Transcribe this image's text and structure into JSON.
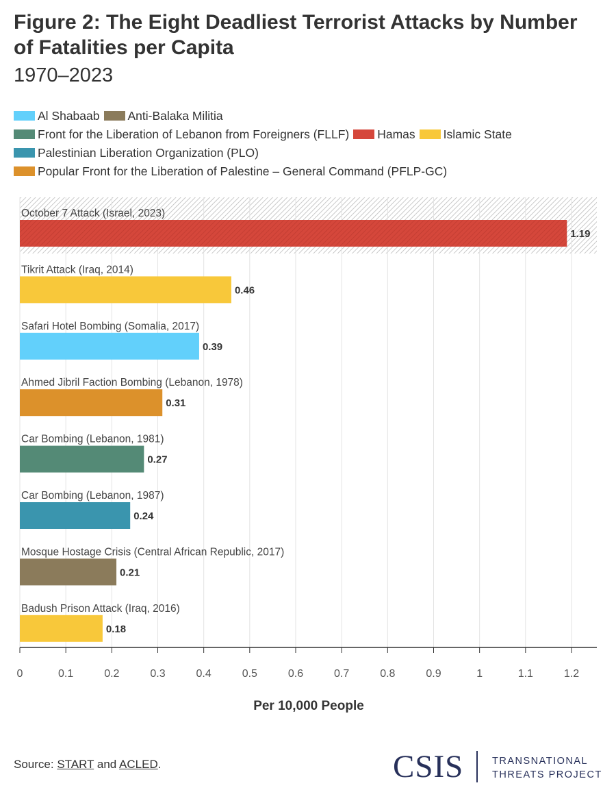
{
  "title": "Figure 2: The Eight Deadliest Terrorist Attacks by Number of Fatalities per Capita",
  "subtitle": "1970–2023",
  "legend": [
    {
      "label": "Al Shabaab",
      "color": "#62d0fb"
    },
    {
      "label": "Anti-Balaka Militia",
      "color": "#8b7b5b"
    },
    {
      "label": "Front for the Liberation of Lebanon from Foreigners (FLLF)",
      "color": "#548a76"
    },
    {
      "label": "Hamas",
      "color": "#d5473b"
    },
    {
      "label": "Islamic State",
      "color": "#f8c83a"
    },
    {
      "label": "Palestinian Liberation Organization (PLO)",
      "color": "#3a95ae"
    },
    {
      "label": "Popular Front for the Liberation of Palestine – General Command (PFLP-GC)",
      "color": "#dc912b"
    }
  ],
  "chart_data": {
    "type": "bar",
    "orientation": "horizontal",
    "categories": [
      "October 7 Attack (Israel, 2023)",
      "Tikrit Attack (Iraq, 2014)",
      "Safari Hotel Bombing (Somalia, 2017)",
      "Ahmed Jibril Faction Bombing (Lebanon, 1978)",
      "Car Bombing (Lebanon, 1981)",
      "Car Bombing (Lebanon, 1987)",
      "Mosque Hostage Crisis (Central African Republic, 2017)",
      "Badush Prison Attack (Iraq, 2016)"
    ],
    "values": [
      1.19,
      0.46,
      0.39,
      0.31,
      0.27,
      0.24,
      0.21,
      0.18
    ],
    "value_labels": [
      "1.19",
      "0.46",
      "0.39",
      "0.31",
      "0.27",
      "0.24",
      "0.21",
      "0.18"
    ],
    "groups": [
      "Hamas",
      "Islamic State",
      "Al Shabaab",
      "Popular Front for the Liberation of Palestine – General Command (PFLP-GC)",
      "Front for the Liberation of Lebanon from Foreigners (FLLF)",
      "Palestinian Liberation Organization (PLO)",
      "Anti-Balaka Militia",
      "Islamic State"
    ],
    "highlighted": "October 7 Attack (Israel, 2023)",
    "xlabel": "Per 10,000 People",
    "xlim": [
      0,
      1.255
    ],
    "xticks": [
      0,
      0.1,
      0.2,
      0.3,
      0.4,
      0.5,
      0.6,
      0.7,
      0.8,
      0.9,
      1,
      1.1,
      1.2
    ],
    "xtick_labels": [
      "0",
      "0.1",
      "0.2",
      "0.3",
      "0.4",
      "0.5",
      "0.6",
      "0.7",
      "0.8",
      "0.9",
      "1",
      "1.1",
      "1.2"
    ],
    "grid": true
  },
  "footer": {
    "source_prefix": "Source: ",
    "source_link1": "START",
    "source_and": " and ",
    "source_link2": "ACLED",
    "source_suffix": ".",
    "logo": "CSIS",
    "org_line1": "TRANSNATIONAL",
    "org_line2": "THREATS PROJECT"
  }
}
